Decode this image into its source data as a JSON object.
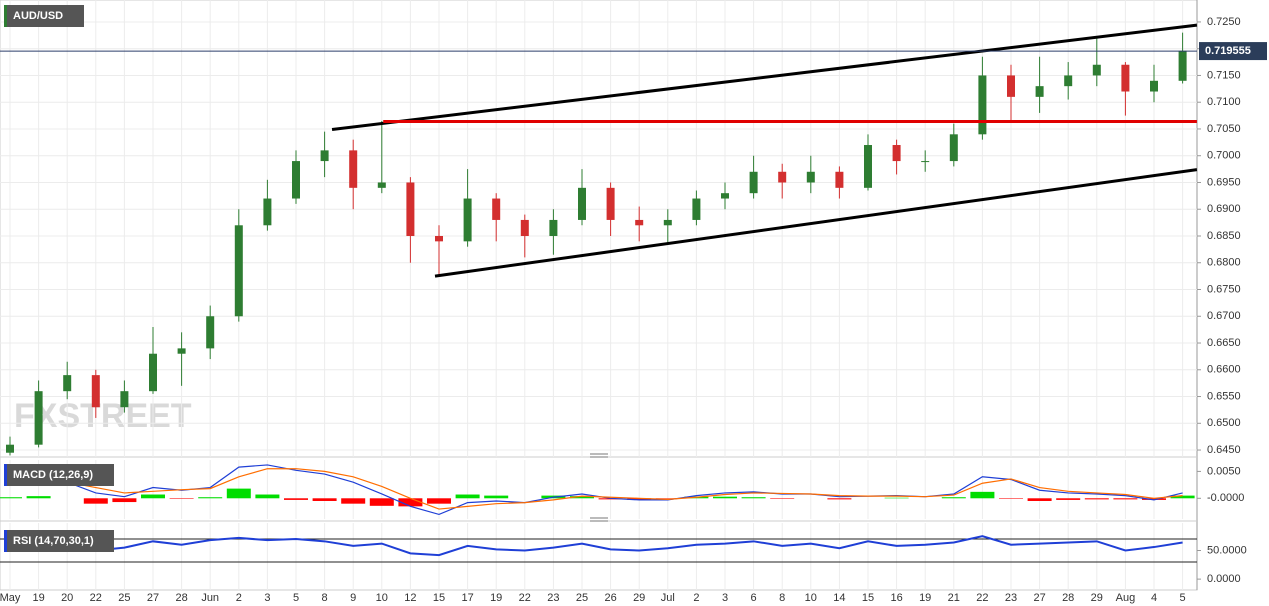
{
  "watermark": "FXSTREET",
  "chart_data": [
    {
      "type": "candlestick",
      "title": "AUD/USD",
      "categories": [
        "May",
        "19",
        "20",
        "22",
        "25",
        "27",
        "28",
        "Jun",
        "2",
        "3",
        "5",
        "8",
        "9",
        "10",
        "12",
        "15",
        "17",
        "19",
        "22",
        "23",
        "25",
        "26",
        "29",
        "Jul",
        "2",
        "3",
        "6",
        "8",
        "10",
        "14",
        "15",
        "16",
        "19",
        "21",
        "22",
        "23",
        "27",
        "28",
        "29",
        "Aug",
        "4",
        "5"
      ],
      "open": [
        0.6445,
        0.646,
        0.656,
        0.659,
        0.653,
        0.656,
        0.663,
        0.664,
        0.67,
        0.687,
        0.692,
        0.699,
        0.701,
        0.694,
        0.695,
        0.685,
        0.684,
        0.692,
        0.688,
        0.685,
        0.688,
        0.694,
        0.688,
        0.687,
        0.688,
        0.692,
        0.693,
        0.697,
        0.695,
        0.697,
        0.694,
        0.702,
        0.699,
        0.699,
        0.704,
        0.715,
        0.711,
        0.713,
        0.715,
        0.717,
        0.712,
        0.714
      ],
      "high": [
        0.6475,
        0.658,
        0.6615,
        0.66,
        0.658,
        0.668,
        0.667,
        0.672,
        0.69,
        0.6955,
        0.701,
        0.7045,
        0.703,
        0.7065,
        0.696,
        0.687,
        0.6975,
        0.693,
        0.689,
        0.69,
        0.6975,
        0.695,
        0.6905,
        0.69,
        0.6935,
        0.695,
        0.7,
        0.6985,
        0.7,
        0.698,
        0.704,
        0.703,
        0.701,
        0.706,
        0.7185,
        0.717,
        0.7185,
        0.7175,
        0.722,
        0.7175,
        0.717,
        0.723
      ],
      "low": [
        0.644,
        0.6455,
        0.6545,
        0.651,
        0.652,
        0.6555,
        0.657,
        0.662,
        0.669,
        0.686,
        0.691,
        0.696,
        0.69,
        0.693,
        0.68,
        0.6775,
        0.683,
        0.684,
        0.681,
        0.6815,
        0.687,
        0.685,
        0.684,
        0.6835,
        0.687,
        0.69,
        0.692,
        0.692,
        0.693,
        0.692,
        0.6935,
        0.6965,
        0.697,
        0.698,
        0.703,
        0.7065,
        0.708,
        0.7105,
        0.713,
        0.7075,
        0.71,
        0.7135
      ],
      "close": [
        0.646,
        0.656,
        0.659,
        0.653,
        0.656,
        0.663,
        0.664,
        0.67,
        0.687,
        0.692,
        0.699,
        0.701,
        0.694,
        0.695,
        0.685,
        0.684,
        0.692,
        0.688,
        0.685,
        0.688,
        0.694,
        0.688,
        0.687,
        0.688,
        0.692,
        0.693,
        0.697,
        0.695,
        0.697,
        0.694,
        0.702,
        0.699,
        0.699,
        0.704,
        0.715,
        0.711,
        0.713,
        0.715,
        0.717,
        0.712,
        0.714,
        0.7196
      ],
      "up_color": "#2e7d32",
      "down_color": "#d32f2f",
      "ylim": [
        0.6437,
        0.7291
      ],
      "yticks": [
        {
          "value": 0.645,
          "label": "0.6450"
        },
        {
          "value": 0.65,
          "label": "0.6500"
        },
        {
          "value": 0.655,
          "label": "0.6550"
        },
        {
          "value": 0.66,
          "label": "0.6600"
        },
        {
          "value": 0.665,
          "label": "0.6650"
        },
        {
          "value": 0.67,
          "label": "0.6700"
        },
        {
          "value": 0.675,
          "label": "0.6750"
        },
        {
          "value": 0.68,
          "label": "0.6800"
        },
        {
          "value": 0.685,
          "label": "0.6850"
        },
        {
          "value": 0.69,
          "label": "0.6900"
        },
        {
          "value": 0.695,
          "label": "0.6950"
        },
        {
          "value": 0.7,
          "label": "0.7000"
        },
        {
          "value": 0.705,
          "label": "0.7050"
        },
        {
          "value": 0.71,
          "label": "0.7100"
        },
        {
          "value": 0.715,
          "label": "0.7150"
        },
        {
          "value": 0.72,
          "label": "0.7200"
        },
        {
          "value": 0.725,
          "label": "0.7250"
        }
      ],
      "grid": true,
      "last_price": 0.719555,
      "trend_lines": [
        {
          "x": [
            11.26,
            41.5
          ],
          "y": [
            0.7049,
            0.7244
          ],
          "color": "#000000"
        },
        {
          "x": [
            13.05,
            41.5
          ],
          "y": [
            0.7064,
            0.7064
          ],
          "color": "#e00000"
        },
        {
          "x": [
            14.86,
            41.5
          ],
          "y": [
            0.6775,
            0.6974
          ],
          "color": "#000000"
        }
      ]
    },
    {
      "type": "macd",
      "title": "MACD (12,26,9)",
      "series": [
        {
          "color": "#1f3fd6",
          "values": [
            0.0027,
            0.0032,
            0.003,
            0.001,
            0.0003,
            0.002,
            0.0015,
            0.002,
            0.0058,
            0.0062,
            0.0052,
            0.0045,
            0.003,
            0.0008,
            -0.0015,
            -0.003,
            -0.0008,
            -0.0005,
            -0.0008,
            0.0002,
            0.0008,
            0.0,
            -0.0003,
            -0.0003,
            0.0005,
            0.001,
            0.0012,
            0.0008,
            0.0008,
            0.0003,
            0.0004,
            0.0005,
            0.0003,
            0.0008,
            0.004,
            0.0035,
            0.0015,
            0.001,
            0.0008,
            0.0005,
            -0.0003,
            0.001
          ]
        },
        {
          "color": "#ff6d00",
          "values": [
            0.0025,
            0.0028,
            0.003,
            0.002,
            0.001,
            0.0013,
            0.0016,
            0.0018,
            0.004,
            0.0055,
            0.0055,
            0.005,
            0.004,
            0.0022,
            0.0,
            -0.002,
            -0.0015,
            -0.001,
            -0.0008,
            -0.0003,
            0.0004,
            0.0002,
            0.0,
            -0.0002,
            0.0002,
            0.0007,
            0.001,
            0.0009,
            0.0008,
            0.0005,
            0.0004,
            0.0004,
            0.0003,
            0.0006,
            0.0028,
            0.0036,
            0.002,
            0.0013,
            0.001,
            0.0007,
            0.0,
            0.0005
          ]
        }
      ],
      "histogram": {
        "up_color": "#00dd00",
        "down_color": "#ff0000",
        "values": [
          0.0002,
          0.0004,
          0.0,
          -0.001,
          -0.0007,
          0.0007,
          -0.0001,
          0.0002,
          0.0018,
          0.0007,
          -0.0003,
          -0.0005,
          -0.001,
          -0.0014,
          -0.0015,
          -0.001,
          0.0007,
          0.0005,
          0.0,
          0.0005,
          0.0004,
          -0.0002,
          -0.0003,
          -0.0001,
          0.0003,
          0.0003,
          0.0002,
          -0.0001,
          0.0,
          -0.0002,
          0.0,
          0.0001,
          0.0,
          0.0002,
          0.0012,
          -0.0001,
          -0.0005,
          -0.0003,
          -0.0002,
          -0.0002,
          -0.0003,
          0.0005
        ]
      },
      "ylim": [
        -0.00385,
        0.00712
      ],
      "yticks": [
        {
          "value": 0.005,
          "label": "0.0050"
        },
        {
          "value": 0,
          "label": "-0.0000"
        }
      ]
    },
    {
      "type": "line",
      "title": "RSI (14,70,30,1)",
      "series": [
        {
          "color": "#1f3fd6",
          "values": [
            60,
            65,
            62,
            50,
            55,
            66,
            60,
            68,
            72,
            68,
            70,
            66,
            58,
            62,
            45,
            42,
            58,
            52,
            50,
            55,
            62,
            52,
            50,
            54,
            60,
            62,
            66,
            58,
            62,
            54,
            66,
            58,
            60,
            64,
            75,
            60,
            62,
            64,
            66,
            50,
            56,
            64
          ]
        }
      ],
      "levels": [
        70,
        30
      ],
      "ylim": [
        -19,
        98
      ],
      "yticks": [
        {
          "value": 50,
          "label": "50.0000"
        },
        {
          "value": 0,
          "label": "0.0000"
        }
      ]
    }
  ]
}
